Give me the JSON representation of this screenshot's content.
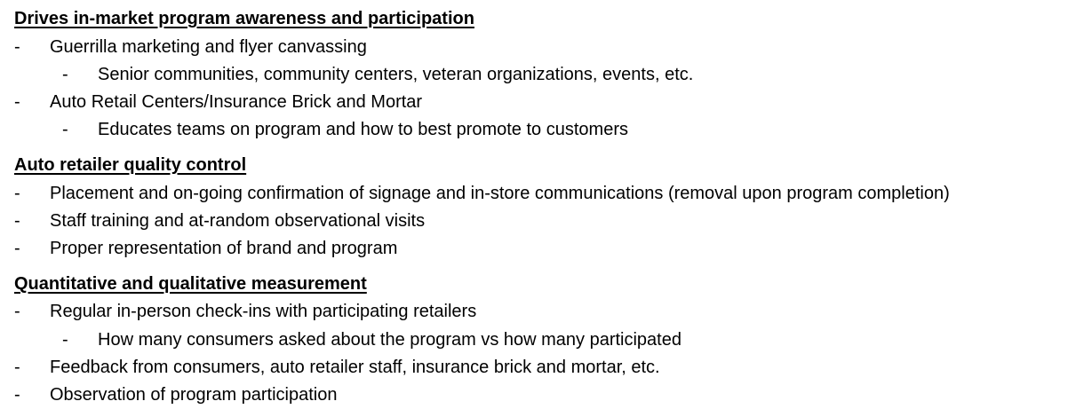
{
  "sections": [
    {
      "heading": "Drives in-market program awareness and participation",
      "items": [
        {
          "bullet": "-",
          "text": "Guerrilla marketing and flyer canvassing"
        },
        {
          "bullet": "-",
          "text": "Senior communities, community centers, veteran organizations, events, etc."
        },
        {
          "bullet": "-",
          "text": "Auto Retail Centers/Insurance Brick and Mortar"
        },
        {
          "bullet": "-",
          "text": "Educates teams on program and how to best promote to customers"
        }
      ]
    },
    {
      "heading": "Auto retailer quality control",
      "items": [
        {
          "bullet": "-",
          "text": "Placement and on-going confirmation of signage and in-store communications (removal upon program completion)"
        },
        {
          "bullet": "-",
          "text": "Staff training and at-random observational visits"
        },
        {
          "bullet": "-",
          "text": "Proper representation of brand and program"
        }
      ]
    },
    {
      "heading": "Quantitative and qualitative measurement",
      "items": [
        {
          "bullet": "-",
          "text": "Regular in-person check-ins with participating retailers"
        },
        {
          "bullet": "-",
          "text": "How many consumers asked about the program vs how many participated"
        },
        {
          "bullet": "-",
          "text": "Feedback from consumers, auto retailer staff, insurance brick and mortar, etc."
        },
        {
          "bullet": "-",
          "text": "Observation of program participation"
        }
      ]
    }
  ]
}
